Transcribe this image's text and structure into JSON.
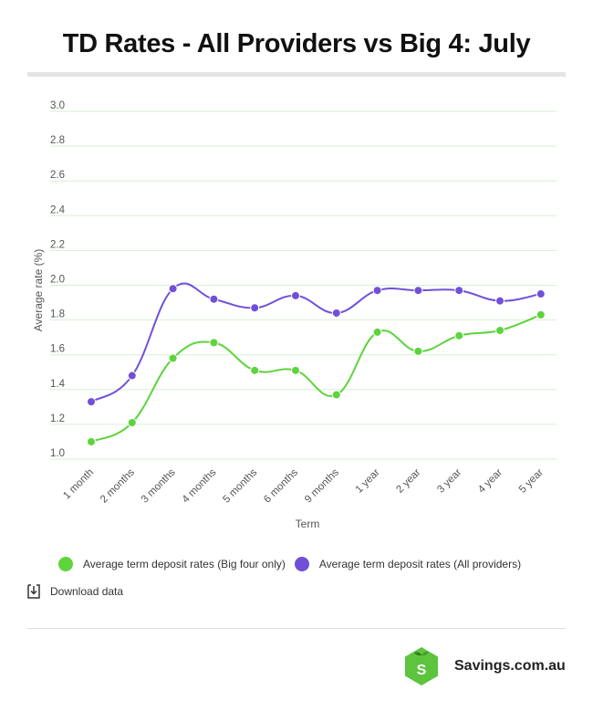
{
  "title": "TD Rates - All Providers vs Big 4: July",
  "download_label": "Download data",
  "brand": {
    "name": "Savings.com.au",
    "logo_letter": "S",
    "logo_color": "#5dc43e"
  },
  "colors": {
    "big4": "#5dd43c",
    "all": "#7150d8",
    "grid": "#d6f0d2",
    "axis_text": "#555555"
  },
  "chart_data": {
    "type": "line",
    "xlabel": "Term",
    "ylabel": "Average rate (%)",
    "ylim": [
      1.0,
      3.0
    ],
    "yticks": [
      "1.0",
      "1.2",
      "1.4",
      "1.6",
      "1.8",
      "2.0",
      "2.2",
      "2.4",
      "2.6",
      "2.8",
      "3.0"
    ],
    "categories": [
      "1 month",
      "2 months",
      "3 months",
      "4 months",
      "5 months",
      "6 months",
      "9 months",
      "1 year",
      "2 year",
      "3 year",
      "4 year",
      "5 year"
    ],
    "series": [
      {
        "name": "Average term deposit rates (Big four only)",
        "color": "#5dd43c",
        "values": [
          1.1,
          1.21,
          1.58,
          1.67,
          1.51,
          1.51,
          1.37,
          1.73,
          1.62,
          1.71,
          1.74,
          1.83
        ]
      },
      {
        "name": "Average term deposit rates (All providers)",
        "color": "#7150d8",
        "values": [
          1.33,
          1.48,
          1.98,
          1.92,
          1.87,
          1.94,
          1.84,
          1.97,
          1.97,
          1.97,
          1.91,
          1.95
        ]
      }
    ],
    "grid": true,
    "legend_position": "bottom-left"
  }
}
